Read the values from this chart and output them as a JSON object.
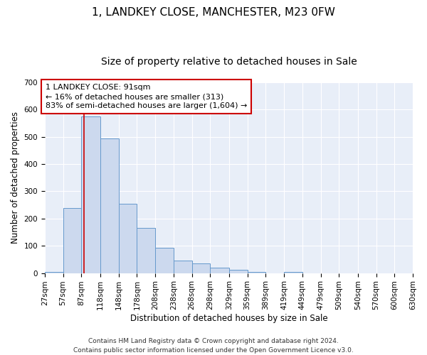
{
  "title": "1, LANDKEY CLOSE, MANCHESTER, M23 0FW",
  "subtitle": "Size of property relative to detached houses in Sale",
  "xlabel": "Distribution of detached houses by size in Sale",
  "ylabel": "Number of detached properties",
  "bar_color": "#ccd9ee",
  "bar_edge_color": "#6699cc",
  "annotation_box_color": "#cc0000",
  "vline_color": "#cc0000",
  "vline_x": 91,
  "annotation_text": "1 LANDKEY CLOSE: 91sqm\n← 16% of detached houses are smaller (313)\n83% of semi-detached houses are larger (1,604) →",
  "footnote": "Contains HM Land Registry data © Crown copyright and database right 2024.\nContains public sector information licensed under the Open Government Licence v3.0.",
  "bins": [
    27,
    57,
    87,
    118,
    148,
    178,
    208,
    238,
    268,
    298,
    329,
    359,
    389,
    419,
    449,
    479,
    509,
    540,
    570,
    600,
    630
  ],
  "counts": [
    5,
    240,
    575,
    495,
    255,
    165,
    92,
    47,
    35,
    20,
    12,
    5,
    0,
    3,
    0,
    0,
    0,
    0,
    0,
    0
  ],
  "ylim": [
    0,
    700
  ],
  "yticks": [
    0,
    100,
    200,
    300,
    400,
    500,
    600,
    700
  ],
  "background_color": "#e8eef8",
  "grid_color": "#ffffff",
  "title_fontsize": 11,
  "subtitle_fontsize": 10,
  "axis_label_fontsize": 8.5,
  "tick_fontsize": 7.5,
  "annotation_fontsize": 8,
  "footnote_fontsize": 6.5
}
